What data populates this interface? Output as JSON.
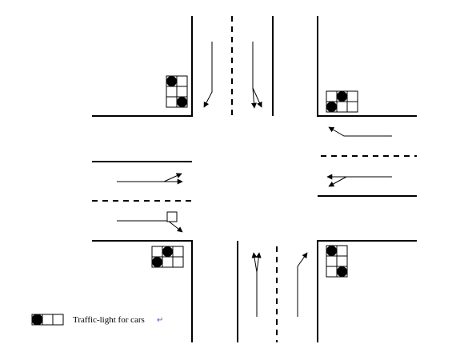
{
  "legend": {
    "label": "Traffic-light for cars",
    "return_mark": "↵"
  },
  "traffic_lights": [
    {
      "id": "north-west",
      "lit": [
        "0-0",
        "2-1"
      ]
    },
    {
      "id": "north-east",
      "lit": [
        "0-1",
        "1-0"
      ]
    },
    {
      "id": "south-west",
      "lit": [
        "0-1",
        "1-0"
      ]
    },
    {
      "id": "south-east",
      "lit": [
        "0-0",
        "2-1"
      ]
    }
  ],
  "colors": {
    "line": "#000000",
    "light_on": "#000000",
    "background": "#ffffff",
    "return_mark": "#3b5bdb"
  }
}
